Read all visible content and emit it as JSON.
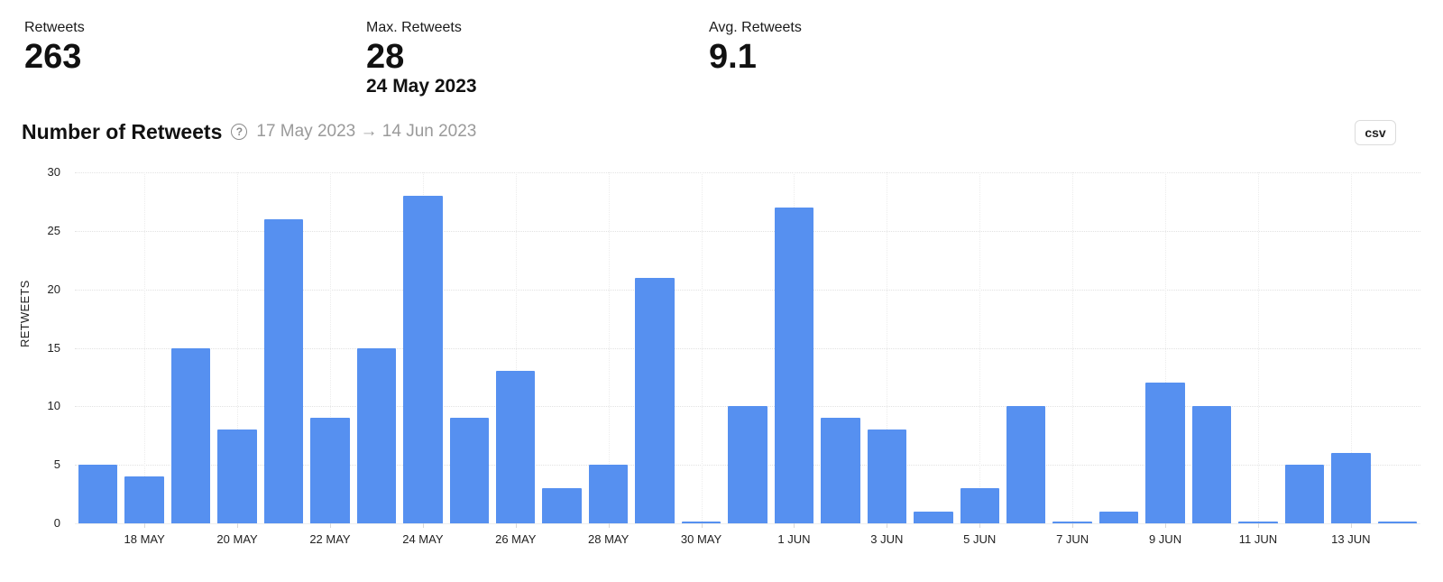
{
  "stats": [
    {
      "label": "Retweets",
      "value": "263",
      "sub": ""
    },
    {
      "label": "Max. Retweets",
      "value": "28",
      "sub": "24 May 2023"
    },
    {
      "label": "Avg. Retweets",
      "value": "9.1",
      "sub": ""
    }
  ],
  "header": {
    "title": "Number of Retweets",
    "help_icon": "?",
    "date_range": "17 May 2023 → 14 Jun 2023",
    "csv_label": "csv"
  },
  "colors": {
    "bar": "#5690f0",
    "range_text": "#9a9a9a"
  },
  "chart_data": {
    "type": "bar",
    "title": "Number of Retweets",
    "xlabel": "",
    "ylabel": "RETWEETS",
    "ylim": [
      0,
      30
    ],
    "yticks": [
      0,
      5,
      10,
      15,
      20,
      25,
      30
    ],
    "grid": true,
    "legend": null,
    "categories": [
      "17 May",
      "18 May",
      "19 May",
      "20 May",
      "21 May",
      "22 May",
      "23 May",
      "24 May",
      "25 May",
      "26 May",
      "27 May",
      "28 May",
      "29 May",
      "30 May",
      "31 May",
      "1 Jun",
      "2 Jun",
      "3 Jun",
      "4 Jun",
      "5 Jun",
      "6 Jun",
      "7 Jun",
      "8 Jun",
      "9 Jun",
      "10 Jun",
      "11 Jun",
      "12 Jun",
      "13 Jun",
      "14 Jun"
    ],
    "values": [
      5,
      4,
      15,
      8,
      26,
      9,
      15,
      28,
      9,
      13,
      3,
      5,
      21,
      0,
      10,
      27,
      9,
      8,
      1,
      3,
      10,
      0,
      1,
      12,
      10,
      0,
      5,
      6,
      0
    ],
    "xtick_labels": [
      {
        "index": 1,
        "label": "18 MAY"
      },
      {
        "index": 3,
        "label": "20 MAY"
      },
      {
        "index": 5,
        "label": "22 MAY"
      },
      {
        "index": 7,
        "label": "24 MAY"
      },
      {
        "index": 9,
        "label": "26 MAY"
      },
      {
        "index": 11,
        "label": "28 MAY"
      },
      {
        "index": 13,
        "label": "30 MAY"
      },
      {
        "index": 15,
        "label": "1 JUN"
      },
      {
        "index": 17,
        "label": "3 JUN"
      },
      {
        "index": 19,
        "label": "5 JUN"
      },
      {
        "index": 21,
        "label": "7 JUN"
      },
      {
        "index": 23,
        "label": "9 JUN"
      },
      {
        "index": 25,
        "label": "11 JUN"
      },
      {
        "index": 27,
        "label": "13 JUN"
      }
    ]
  }
}
